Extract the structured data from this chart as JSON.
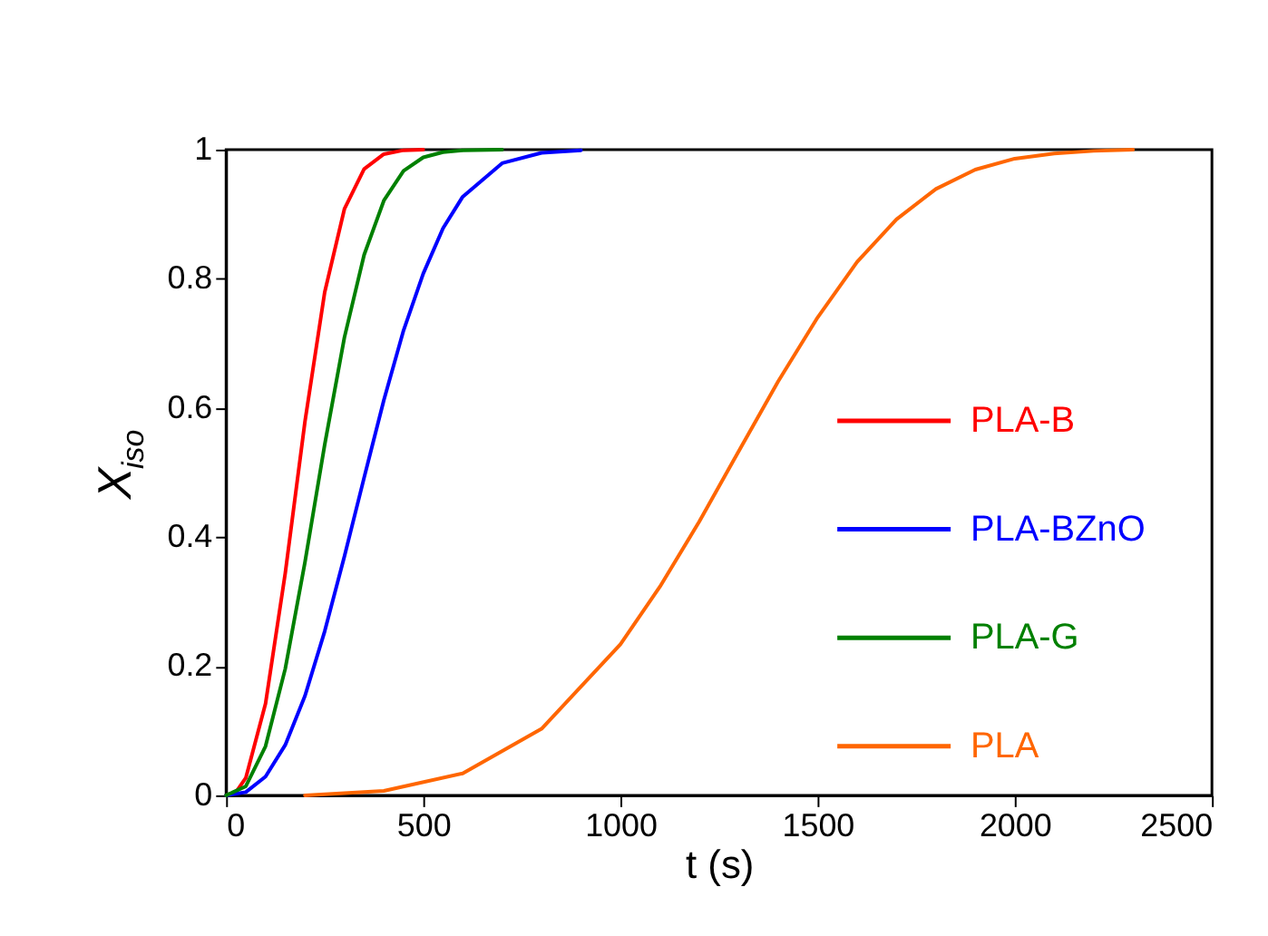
{
  "chart_data": {
    "type": "line",
    "xlabel": "t (s)",
    "ylabel": "X$_{iso}$",
    "xlim": [
      0,
      2500
    ],
    "ylim": [
      0,
      1
    ],
    "xticks": [
      0,
      500,
      1000,
      1500,
      2000,
      2500
    ],
    "yticks": [
      0,
      {
        "value": 0.2,
        "label": "0.2"
      },
      {
        "value": 0.4,
        "label": "0.4"
      },
      {
        "value": 0.6,
        "label": "0.6"
      },
      {
        "value": 0.8,
        "label": "0.8"
      },
      1
    ],
    "grid": false,
    "legend": "right",
    "marker": "none",
    "line_style": "solid",
    "series": [
      {
        "name": "PLA-B",
        "color": "#ff0000",
        "x": [
          0,
          25,
          50,
          100,
          150,
          200,
          250,
          300,
          350,
          400,
          450,
          500
        ],
        "values": [
          0,
          0.005,
          0.027,
          0.142,
          0.344,
          0.579,
          0.779,
          0.908,
          0.97,
          0.993,
          0.999,
          1
        ]
      },
      {
        "name": "PLA-BZnO",
        "color": "#0000ff",
        "x": [
          0,
          50,
          100,
          150,
          200,
          250,
          300,
          350,
          400,
          450,
          500,
          550,
          600,
          700,
          800,
          900
        ],
        "values": [
          0,
          0.005,
          0.029,
          0.078,
          0.154,
          0.254,
          0.37,
          0.492,
          0.612,
          0.72,
          0.808,
          0.878,
          0.927,
          0.979,
          0.995,
          0.999
        ]
      },
      {
        "name": "PLA-G",
        "color": "#008000",
        "x": [
          0,
          50,
          100,
          150,
          200,
          250,
          300,
          350,
          400,
          450,
          500,
          550,
          600,
          700
        ],
        "values": [
          0,
          0.014,
          0.076,
          0.196,
          0.361,
          0.543,
          0.709,
          0.837,
          0.921,
          0.967,
          0.988,
          0.996,
          0.999,
          1
        ]
      },
      {
        "name": "PLA",
        "color": "#ff6600",
        "x": [
          200,
          400,
          600,
          800,
          1000,
          1100,
          1200,
          1300,
          1400,
          1500,
          1600,
          1700,
          1800,
          1900,
          2000,
          2100,
          2200,
          2300
        ],
        "values": [
          0,
          0.007,
          0.034,
          0.103,
          0.234,
          0.323,
          0.424,
          0.533,
          0.641,
          0.74,
          0.826,
          0.892,
          0.939,
          0.969,
          0.986,
          0.994,
          0.998,
          1
        ]
      }
    ]
  }
}
